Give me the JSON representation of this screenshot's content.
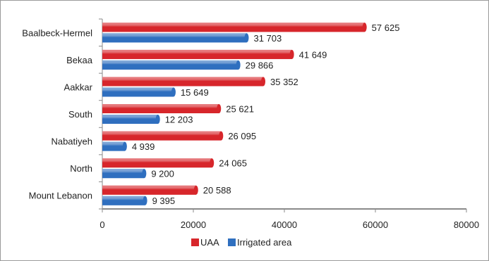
{
  "chart_data": {
    "type": "bar",
    "orientation": "horizontal",
    "title": "",
    "xlabel": "",
    "ylabel": "",
    "categories": [
      "Baalbeck-Hermel",
      "Bekaa",
      "Aakkar",
      "South",
      "Nabatiyeh",
      "North",
      "Mount Lebanon"
    ],
    "series": [
      {
        "name": "UAA",
        "color": "#d7262b",
        "values": [
          57625,
          41649,
          35352,
          25621,
          26095,
          24065,
          20588
        ],
        "labels": [
          "57 625",
          "41 649",
          "35 352",
          "25 621",
          "26 095",
          "24 065",
          "20 588"
        ]
      },
      {
        "name": "Irrigated area",
        "color": "#2f6fbf",
        "values": [
          31703,
          29866,
          15649,
          12203,
          4939,
          9200,
          9395
        ],
        "labels": [
          "31 703",
          "29 866",
          "15 649",
          "12 203",
          "4 939",
          "9 200",
          "9 395"
        ]
      }
    ],
    "xlim": [
      0,
      80000
    ],
    "xticks": [
      0,
      20000,
      40000,
      60000,
      80000
    ],
    "xtick_labels": [
      "0",
      "20000",
      "40000",
      "60000",
      "80000"
    ],
    "grid": false,
    "legend_position": "bottom"
  }
}
